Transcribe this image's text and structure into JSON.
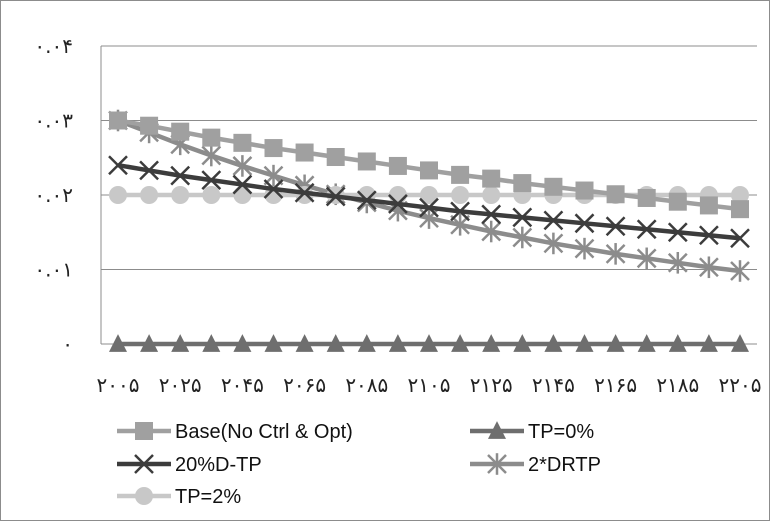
{
  "chart_data": {
    "type": "line",
    "title": "",
    "xlabel": "",
    "ylabel": "",
    "x": [
      "۲۰۰۵",
      "۲۰۱۵",
      "۲۰۲۵",
      "۲۰۳۵",
      "۲۰۴۵",
      "۲۰۵۵",
      "۲۰۶۵",
      "۲۰۷۵",
      "۲۰۸۵",
      "۲۰۹۵",
      "۲۱۰۵",
      "۲۱۱۵",
      "۲۱۲۵",
      "۲۱۳۵",
      "۲۱۴۵",
      "۲۱۵۵",
      "۲۱۶۵",
      "۲۱۷۵",
      "۲۱۸۵",
      "۲۱۹۵",
      "۲۲۰۵"
    ],
    "x_tick_labels": [
      "۲۰۰۵",
      "۲۰۲۵",
      "۲۰۴۵",
      "۲۰۶۵",
      "۲۰۸۵",
      "۲۱۰۵",
      "۲۱۲۵",
      "۲۱۴۵",
      "۲۱۶۵",
      "۲۱۸۵",
      "۲۲۰۵"
    ],
    "y_tick_labels": [
      "۰",
      "۰.۰۱",
      "۰.۰۲",
      "۰.۰۳",
      "۰.۰۴"
    ],
    "y_ticks": [
      0,
      0.01,
      0.02,
      0.03,
      0.04
    ],
    "ylim": [
      0,
      0.04
    ],
    "grid": "horizontal",
    "legend_position": "bottom",
    "series": [
      {
        "name": "Base(No Ctrl & Opt)",
        "color": "#a0a0a0",
        "marker": "square",
        "values": [
          0.03,
          0.0293,
          0.0285,
          0.0277,
          0.027,
          0.0263,
          0.0257,
          0.0251,
          0.0245,
          0.0239,
          0.0233,
          0.0227,
          0.0222,
          0.0216,
          0.0211,
          0.0206,
          0.0201,
          0.0196,
          0.0191,
          0.0186,
          0.0181
        ]
      },
      {
        "name": "TP=0%",
        "color": "#6e6e6e",
        "marker": "triangle",
        "values": [
          0,
          0,
          0,
          0,
          0,
          0,
          0,
          0,
          0,
          0,
          0,
          0,
          0,
          0,
          0,
          0,
          0,
          0,
          0,
          0,
          0
        ]
      },
      {
        "name": "20%D-TP",
        "color": "#3c3c3c",
        "marker": "x",
        "values": [
          0.024,
          0.0233,
          0.0226,
          0.022,
          0.0214,
          0.0208,
          0.0203,
          0.0198,
          0.0193,
          0.0188,
          0.0183,
          0.0178,
          0.0174,
          0.017,
          0.0166,
          0.0162,
          0.0158,
          0.0154,
          0.015,
          0.0146,
          0.0142
        ]
      },
      {
        "name": "2*DRTP",
        "color": "#8c8c8c",
        "marker": "star",
        "values": [
          0.03,
          0.0284,
          0.0268,
          0.0253,
          0.0239,
          0.0226,
          0.0213,
          0.0201,
          0.019,
          0.0179,
          0.0169,
          0.016,
          0.0151,
          0.0143,
          0.0135,
          0.0128,
          0.0121,
          0.0115,
          0.0109,
          0.0103,
          0.0098
        ]
      },
      {
        "name": "TP=2%",
        "color": "#c8c8c8",
        "marker": "circle",
        "values": [
          0.02,
          0.02,
          0.02,
          0.02,
          0.02,
          0.02,
          0.02,
          0.02,
          0.02,
          0.02,
          0.02,
          0.02,
          0.02,
          0.02,
          0.02,
          0.02,
          0.02,
          0.02,
          0.02,
          0.02,
          0.02
        ]
      }
    ]
  }
}
